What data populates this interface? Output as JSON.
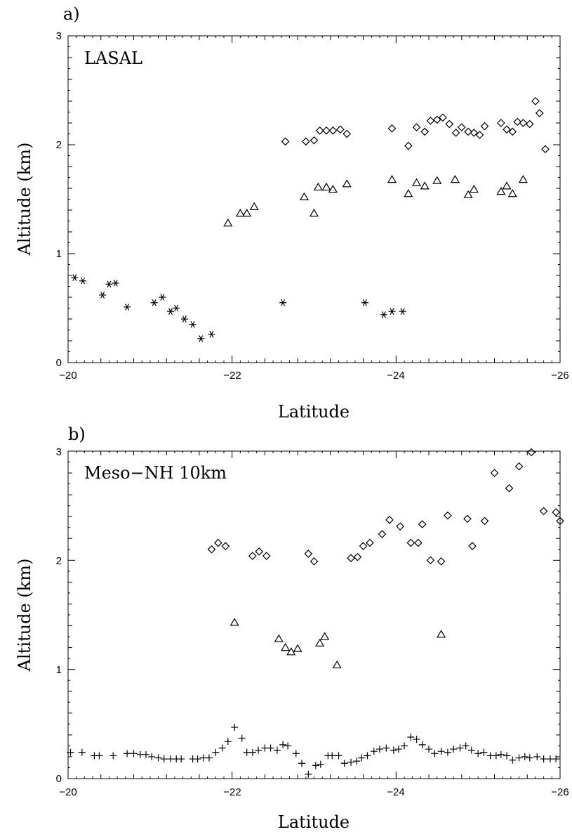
{
  "chart_data": [
    {
      "panel": "a)",
      "type": "scatter",
      "label": "LASAL",
      "xlabel": "Latitude",
      "ylabel": "Altitude (km)",
      "xlim": [
        -20,
        -26
      ],
      "ylim": [
        0,
        3
      ],
      "x_ticks": [
        "-20",
        "-22",
        "-24",
        "-26"
      ],
      "y_ticks": [
        "0",
        "1",
        "2",
        "3"
      ],
      "series": [
        {
          "marker": "diamond",
          "points": [
            [
              -22.65,
              2.03
            ],
            [
              -22.9,
              2.03
            ],
            [
              -23.0,
              2.04
            ],
            [
              -23.07,
              2.13
            ],
            [
              -23.15,
              2.13
            ],
            [
              -23.23,
              2.13
            ],
            [
              -23.32,
              2.14
            ],
            [
              -23.4,
              2.1
            ],
            [
              -23.95,
              2.15
            ],
            [
              -24.15,
              1.99
            ],
            [
              -24.25,
              2.16
            ],
            [
              -24.35,
              2.12
            ],
            [
              -24.42,
              2.22
            ],
            [
              -24.5,
              2.23
            ],
            [
              -24.57,
              2.25
            ],
            [
              -24.65,
              2.19
            ],
            [
              -24.73,
              2.11
            ],
            [
              -24.8,
              2.16
            ],
            [
              -24.88,
              2.12
            ],
            [
              -24.95,
              2.11
            ],
            [
              -25.02,
              2.09
            ],
            [
              -25.08,
              2.17
            ],
            [
              -25.28,
              2.2
            ],
            [
              -25.35,
              2.14
            ],
            [
              -25.42,
              2.12
            ],
            [
              -25.48,
              2.21
            ],
            [
              -25.55,
              2.2
            ],
            [
              -25.63,
              2.19
            ],
            [
              -25.7,
              2.4
            ],
            [
              -25.75,
              2.29
            ],
            [
              -25.82,
              1.96
            ]
          ]
        },
        {
          "marker": "triangle",
          "points": [
            [
              -21.95,
              1.28
            ],
            [
              -22.1,
              1.37
            ],
            [
              -22.18,
              1.37
            ],
            [
              -22.27,
              1.43
            ],
            [
              -22.88,
              1.52
            ],
            [
              -23.0,
              1.37
            ],
            [
              -23.05,
              1.61
            ],
            [
              -23.15,
              1.61
            ],
            [
              -23.23,
              1.59
            ],
            [
              -23.4,
              1.64
            ],
            [
              -23.95,
              1.68
            ],
            [
              -24.15,
              1.55
            ],
            [
              -24.25,
              1.65
            ],
            [
              -24.35,
              1.62
            ],
            [
              -24.5,
              1.67
            ],
            [
              -24.72,
              1.68
            ],
            [
              -24.88,
              1.54
            ],
            [
              -24.95,
              1.59
            ],
            [
              -25.28,
              1.57
            ],
            [
              -25.35,
              1.62
            ],
            [
              -25.42,
              1.55
            ],
            [
              -25.55,
              1.68
            ]
          ]
        },
        {
          "marker": "asterisk",
          "points": [
            [
              -20.08,
              0.78
            ],
            [
              -20.18,
              0.75
            ],
            [
              -20.42,
              0.62
            ],
            [
              -20.5,
              0.72
            ],
            [
              -20.58,
              0.73
            ],
            [
              -20.72,
              0.51
            ],
            [
              -21.05,
              0.55
            ],
            [
              -21.15,
              0.6
            ],
            [
              -21.25,
              0.47
            ],
            [
              -21.32,
              0.5
            ],
            [
              -21.42,
              0.4
            ],
            [
              -21.52,
              0.35
            ],
            [
              -21.62,
              0.22
            ],
            [
              -21.75,
              0.26
            ],
            [
              -22.62,
              0.55
            ],
            [
              -23.62,
              0.55
            ],
            [
              -23.85,
              0.44
            ],
            [
              -23.95,
              0.47
            ],
            [
              -24.08,
              0.47
            ]
          ]
        }
      ]
    },
    {
      "panel": "b)",
      "type": "scatter",
      "label": "Meso−NH 10km",
      "xlabel": "Latitude",
      "ylabel": "Altitude (km)",
      "xlim": [
        -20,
        -26
      ],
      "ylim": [
        0,
        3
      ],
      "x_ticks": [
        "-20",
        "-22",
        "-24",
        "-26"
      ],
      "y_ticks": [
        "0",
        "1",
        "2",
        "3"
      ],
      "series": [
        {
          "marker": "diamond",
          "points": [
            [
              -21.75,
              2.1
            ],
            [
              -21.83,
              2.16
            ],
            [
              -21.92,
              2.13
            ],
            [
              -22.25,
              2.04
            ],
            [
              -22.33,
              2.08
            ],
            [
              -22.42,
              2.04
            ],
            [
              -22.93,
              2.06
            ],
            [
              -23.0,
              1.99
            ],
            [
              -23.45,
              2.02
            ],
            [
              -23.53,
              2.03
            ],
            [
              -23.6,
              2.13
            ],
            [
              -23.68,
              2.16
            ],
            [
              -23.83,
              2.24
            ],
            [
              -23.92,
              2.37
            ],
            [
              -24.05,
              2.31
            ],
            [
              -24.18,
              2.16
            ],
            [
              -24.27,
              2.16
            ],
            [
              -24.32,
              2.33
            ],
            [
              -24.42,
              2.0
            ],
            [
              -24.55,
              1.99
            ],
            [
              -24.63,
              2.41
            ],
            [
              -24.87,
              2.38
            ],
            [
              -24.93,
              2.13
            ],
            [
              -25.08,
              2.36
            ],
            [
              -25.2,
              2.8
            ],
            [
              -25.38,
              2.66
            ],
            [
              -25.5,
              2.86
            ],
            [
              -25.65,
              2.99
            ],
            [
              -25.8,
              2.45
            ],
            [
              -25.95,
              2.44
            ],
            [
              -26.0,
              2.36
            ]
          ]
        },
        {
          "marker": "triangle",
          "points": [
            [
              -22.03,
              1.43
            ],
            [
              -22.57,
              1.28
            ],
            [
              -22.65,
              1.2
            ],
            [
              -22.72,
              1.16
            ],
            [
              -22.8,
              1.19
            ],
            [
              -23.07,
              1.24
            ],
            [
              -23.13,
              1.3
            ],
            [
              -23.28,
              1.04
            ],
            [
              -24.55,
              1.32
            ]
          ]
        },
        {
          "marker": "plus",
          "points": [
            [
              -20.03,
              0.24
            ],
            [
              -20.17,
              0.24
            ],
            [
              -20.32,
              0.21
            ],
            [
              -20.38,
              0.21
            ],
            [
              -20.55,
              0.21
            ],
            [
              -20.72,
              0.23
            ],
            [
              -20.8,
              0.23
            ],
            [
              -20.88,
              0.22
            ],
            [
              -20.95,
              0.22
            ],
            [
              -21.02,
              0.2
            ],
            [
              -21.1,
              0.19
            ],
            [
              -21.17,
              0.18
            ],
            [
              -21.25,
              0.18
            ],
            [
              -21.32,
              0.18
            ],
            [
              -21.38,
              0.18
            ],
            [
              -21.52,
              0.18
            ],
            [
              -21.58,
              0.18
            ],
            [
              -21.65,
              0.19
            ],
            [
              -21.72,
              0.19
            ],
            [
              -21.8,
              0.24
            ],
            [
              -21.88,
              0.28
            ],
            [
              -21.95,
              0.34
            ],
            [
              -22.03,
              0.47
            ],
            [
              -22.12,
              0.37
            ],
            [
              -22.18,
              0.24
            ],
            [
              -22.25,
              0.24
            ],
            [
              -22.32,
              0.26
            ],
            [
              -22.4,
              0.28
            ],
            [
              -22.47,
              0.28
            ],
            [
              -22.55,
              0.26
            ],
            [
              -22.62,
              0.31
            ],
            [
              -22.68,
              0.3
            ],
            [
              -22.78,
              0.23
            ],
            [
              -22.85,
              0.14
            ],
            [
              -22.93,
              0.04
            ],
            [
              -23.02,
              0.12
            ],
            [
              -23.08,
              0.13
            ],
            [
              -23.17,
              0.21
            ],
            [
              -23.22,
              0.21
            ],
            [
              -23.3,
              0.21
            ],
            [
              -23.37,
              0.14
            ],
            [
              -23.45,
              0.15
            ],
            [
              -23.52,
              0.16
            ],
            [
              -23.58,
              0.19
            ],
            [
              -23.65,
              0.21
            ],
            [
              -23.73,
              0.25
            ],
            [
              -23.8,
              0.27
            ],
            [
              -23.88,
              0.28
            ],
            [
              -23.97,
              0.26
            ],
            [
              -24.03,
              0.27
            ],
            [
              -24.1,
              0.3
            ],
            [
              -24.18,
              0.38
            ],
            [
              -24.25,
              0.36
            ],
            [
              -24.32,
              0.31
            ],
            [
              -24.4,
              0.27
            ],
            [
              -24.47,
              0.23
            ],
            [
              -24.55,
              0.25
            ],
            [
              -24.63,
              0.24
            ],
            [
              -24.7,
              0.27
            ],
            [
              -24.78,
              0.28
            ],
            [
              -24.85,
              0.3
            ],
            [
              -24.92,
              0.26
            ],
            [
              -25.0,
              0.23
            ],
            [
              -25.07,
              0.24
            ],
            [
              -25.15,
              0.21
            ],
            [
              -25.22,
              0.21
            ],
            [
              -25.28,
              0.22
            ],
            [
              -25.35,
              0.21
            ],
            [
              -25.42,
              0.17
            ],
            [
              -25.5,
              0.19
            ],
            [
              -25.57,
              0.2
            ],
            [
              -25.63,
              0.19
            ],
            [
              -25.72,
              0.2
            ],
            [
              -25.8,
              0.18
            ],
            [
              -25.88,
              0.18
            ],
            [
              -25.95,
              0.18
            ]
          ]
        }
      ]
    }
  ]
}
